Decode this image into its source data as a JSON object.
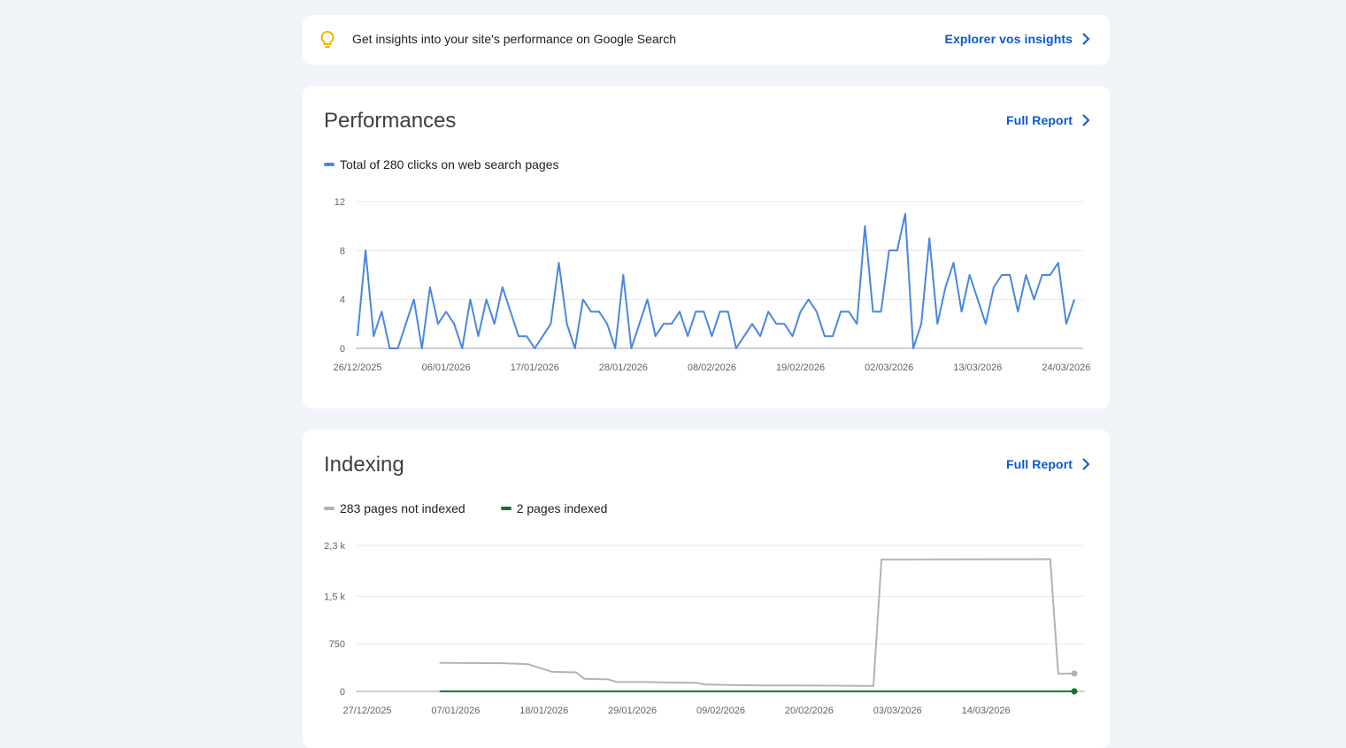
{
  "insights": {
    "text": "Get insights into your site's performance on Google Search",
    "link_label": "Explorer vos insights",
    "icon": "lightbulb-icon"
  },
  "performance": {
    "title": "Performances",
    "link_label": "Full Report",
    "legend": "Total of 280 clicks on web search pages"
  },
  "indexing": {
    "title": "Indexing",
    "link_label": "Full Report",
    "legend_not_indexed": "283 pages not indexed",
    "legend_indexed": "2 pages indexed"
  },
  "colors": {
    "clicks": "#4a86e0",
    "not_indexed": "#b3b3b3",
    "indexed": "#137333",
    "link": "#0b57d0"
  },
  "chart_data": [
    {
      "type": "line",
      "ylim": [
        0,
        12
      ],
      "yticks": [
        "0",
        "4",
        "8",
        "12"
      ],
      "yticks_values": [
        0,
        4,
        8,
        12
      ],
      "xticks": [
        "26/12/2025",
        "06/01/2026",
        "17/01/2026",
        "28/01/2026",
        "08/02/2026",
        "19/02/2026",
        "02/03/2026",
        "13/03/2026",
        "24/03/2026"
      ],
      "x_range": [
        "26/12/2025",
        "25/03/2026"
      ],
      "series": [
        {
          "values": [
            1,
            8,
            1,
            3,
            0,
            0,
            2,
            4,
            0,
            5,
            2,
            3,
            2,
            0,
            4,
            1,
            4,
            2,
            5,
            3,
            1,
            1,
            0,
            1,
            2,
            7,
            2,
            0,
            4,
            3,
            3,
            2,
            0,
            6,
            0,
            2,
            4,
            1,
            2,
            2,
            3,
            1,
            3,
            3,
            1,
            3,
            3,
            0,
            1,
            2,
            1,
            3,
            2,
            2,
            1,
            3,
            4,
            3,
            1,
            1,
            3,
            3,
            2,
            10,
            3,
            3,
            8,
            8,
            11,
            0,
            2,
            9,
            2,
            5,
            7,
            3,
            6,
            4,
            2,
            5,
            6,
            6,
            3,
            6,
            4,
            6,
            6,
            7,
            2,
            4
          ]
        }
      ]
    },
    {
      "type": "line",
      "ylim": [
        0,
        2300
      ],
      "yticks": [
        "0",
        "750",
        "1,5 k",
        "2,3 k"
      ],
      "yticks_values": [
        0,
        750,
        1500,
        2300
      ],
      "xticks": [
        "27/12/2025",
        "07/01/2026",
        "18/01/2026",
        "29/01/2026",
        "09/02/2026",
        "20/02/2026",
        "03/03/2026",
        "14/03/2026"
      ],
      "x_range": [
        "27/12/2025",
        "25/03/2026"
      ],
      "series": [
        {
          "name": "283 pages not indexed",
          "points": [
            [
              "05/01/2026",
              450
            ],
            [
              "13/01/2026",
              445
            ],
            [
              "16/01/2026",
              430
            ],
            [
              "19/01/2026",
              310
            ],
            [
              "22/01/2026",
              300
            ],
            [
              "23/01/2026",
              200
            ],
            [
              "26/01/2026",
              190
            ],
            [
              "27/01/2026",
              150
            ],
            [
              "31/01/2026",
              148
            ],
            [
              "03/02/2026",
              140
            ],
            [
              "06/02/2026",
              135
            ],
            [
              "07/02/2026",
              110
            ],
            [
              "10/02/2026",
              100
            ],
            [
              "14/02/2026",
              95
            ],
            [
              "23/02/2026",
              90
            ],
            [
              "28/02/2026",
              85
            ],
            [
              "29/02/2026",
              2080
            ],
            [
              "22/03/2026",
              2085
            ],
            [
              "23/03/2026",
              280
            ],
            [
              "25/03/2026",
              283
            ]
          ]
        },
        {
          "name": "2 pages indexed",
          "points": [
            [
              "05/01/2026",
              2
            ],
            [
              "25/03/2026",
              2
            ]
          ]
        }
      ]
    }
  ]
}
